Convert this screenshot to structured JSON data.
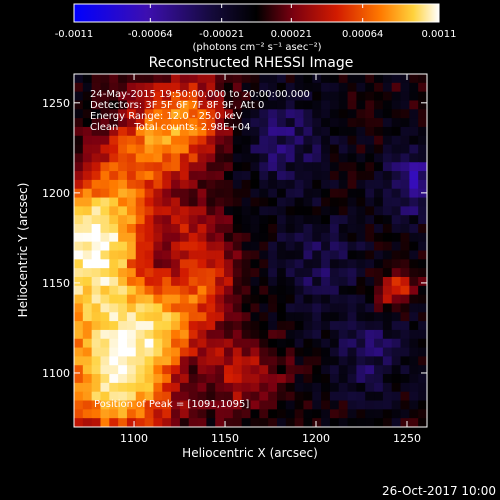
{
  "colorbar": {
    "tick_labels": [
      "-0.0011",
      "-0.00064",
      "-0.00021",
      "0.00021",
      "0.00064",
      "0.0011"
    ],
    "tick_values": [
      -0.0011,
      -0.00064,
      -0.00021,
      0.00021,
      0.00064,
      0.0011
    ],
    "range": [
      -0.0011,
      0.0011
    ],
    "units_label": "(photons cm⁻² s⁻¹ asec⁻²)",
    "colormap": [
      "#0000ff",
      "#3d0fb0",
      "#140a3a",
      "#000000",
      "#7a0010",
      "#d21b00",
      "#ff7a00",
      "#ffd23c",
      "#ffffff"
    ]
  },
  "chart_data": {
    "type": "heatmap",
    "title": "Reconstructed RHESSI Image",
    "xlabel": "Heliocentric X (arcsec)",
    "ylabel": "Heliocentric Y (arcsec)",
    "xlim": [
      1067,
      1261
    ],
    "ylim": [
      1070,
      1266
    ],
    "x_ticks": [
      1100,
      1150,
      1200,
      1250
    ],
    "y_ticks": [
      1100,
      1150,
      1200,
      1250
    ],
    "x_tick_labels": [
      "1100",
      "1150",
      "1200",
      "1250"
    ],
    "y_tick_labels": [
      "1100",
      "1150",
      "1200",
      "1250"
    ],
    "value_range": [
      -0.0011,
      0.0011
    ],
    "peak": [
      1091,
      1095
    ],
    "info_lines": [
      "24-May-2015 19:50:00.000 to 20:00:00.000",
      "Detectors: 3F 5F 6F 7F 8F 9F, Att 0",
      "Energy Range: 12.0 - 25.0 keV",
      "Clean     Total counts: 2.98E+04"
    ],
    "peak_label": "Position of Peak = [1091,1095]"
  },
  "footer": {
    "date": "26-Oct-2017 10:00"
  }
}
